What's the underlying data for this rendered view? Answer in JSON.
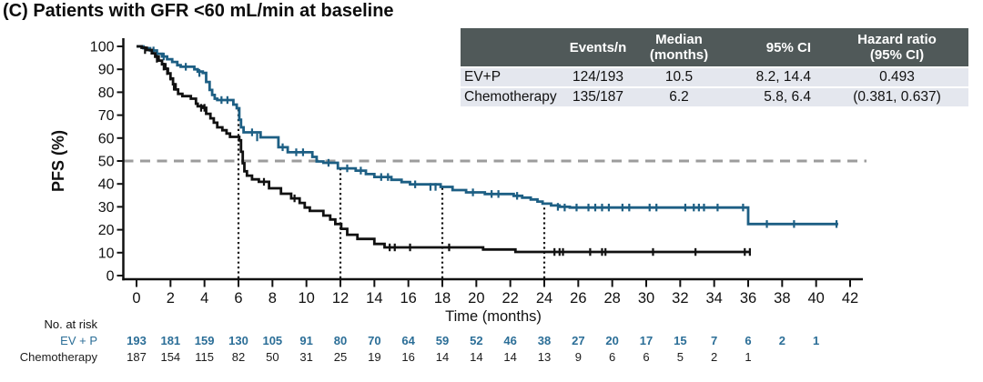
{
  "title": "(C) Patients with GFR <60 mL/min at baseline",
  "inset_table": {
    "columns": {
      "events": "Events/n",
      "median": "Median\n(months)",
      "ci": "95% CI",
      "hr": "Hazard ratio\n(95% CI)"
    },
    "rows": [
      {
        "label": "EV+P",
        "events": "124/193",
        "median": "10.5",
        "ci": "8.2, 14.4",
        "hr": "0.493"
      },
      {
        "label": "Chemotherapy",
        "events": "135/187",
        "median": "6.2",
        "ci": "5.8, 6.4",
        "hr": "(0.381, 0.637)"
      }
    ],
    "header_bg": "#505959",
    "header_text_color": "#ffffff",
    "row_bg": "#e4e7ee"
  },
  "chart_data": {
    "type": "line",
    "subtype": "kaplan-meier-step",
    "xlabel": "Time (months)",
    "ylabel": "PFS (%)",
    "xlim": [
      0,
      42
    ],
    "x_tick_step": 2,
    "x_ticks": [
      0,
      2,
      4,
      6,
      8,
      10,
      12,
      14,
      16,
      18,
      20,
      22,
      24,
      26,
      28,
      30,
      32,
      34,
      36,
      38,
      40,
      42
    ],
    "ylim": [
      0,
      100
    ],
    "y_tick_step": 10,
    "y_ticks": [
      0,
      10,
      20,
      30,
      40,
      50,
      60,
      70,
      80,
      90,
      100
    ],
    "grid": false,
    "reference_line_pct": 50,
    "reference_line_color": "#9c9c9c",
    "dotted_vlines_months": [
      6,
      12,
      18,
      24
    ],
    "series": [
      {
        "name": "EV+P",
        "color": "#1d5f84",
        "median_months": 10.5,
        "end_time": 41.3,
        "steps": [
          [
            0,
            100
          ],
          [
            0.4,
            99.2
          ],
          [
            0.8,
            98.2
          ],
          [
            1.2,
            96.8
          ],
          [
            1.5,
            95.6
          ],
          [
            1.8,
            94.4
          ],
          [
            2.1,
            93.2
          ],
          [
            2.4,
            91.8
          ],
          [
            2.6,
            91.1
          ],
          [
            3.4,
            90.0
          ],
          [
            3.6,
            89.0
          ],
          [
            3.9,
            88.4
          ],
          [
            4.1,
            84.5
          ],
          [
            4.3,
            81.0
          ],
          [
            4.45,
            78.8
          ],
          [
            4.6,
            77.2
          ],
          [
            4.75,
            76.6
          ],
          [
            5.7,
            74.6
          ],
          [
            5.9,
            73.0
          ],
          [
            6.05,
            68.0
          ],
          [
            6.15,
            64.7
          ],
          [
            6.3,
            62.5
          ],
          [
            7.3,
            60.3
          ],
          [
            8.35,
            56.0
          ],
          [
            8.9,
            53.8
          ],
          [
            10.35,
            51.8
          ],
          [
            10.6,
            49.8
          ],
          [
            11.0,
            49.2
          ],
          [
            11.85,
            46.8
          ],
          [
            12.9,
            45.8
          ],
          [
            13.5,
            44.3
          ],
          [
            14.0,
            43.0
          ],
          [
            15.0,
            41.8
          ],
          [
            15.6,
            40.8
          ],
          [
            16.1,
            39.8
          ],
          [
            17.9,
            38.7
          ],
          [
            18.6,
            37.3
          ],
          [
            19.4,
            36.3
          ],
          [
            20.5,
            35.6
          ],
          [
            22.2,
            34.8
          ],
          [
            22.7,
            34.0
          ],
          [
            23.2,
            33.2
          ],
          [
            23.6,
            32.3
          ],
          [
            23.9,
            31.4
          ],
          [
            24.4,
            30.6
          ],
          [
            24.9,
            30.0
          ],
          [
            25.5,
            29.7
          ],
          [
            36.0,
            22.5
          ]
        ],
        "censors": [
          [
            1.0,
            98.2
          ],
          [
            1.6,
            95.6
          ],
          [
            2.9,
            91.1
          ],
          [
            3.7,
            88.4
          ],
          [
            5.0,
            76.6
          ],
          [
            5.35,
            76.6
          ],
          [
            6.8,
            62.5
          ],
          [
            7.1,
            60.3
          ],
          [
            8.6,
            56.0
          ],
          [
            9.4,
            53.8
          ],
          [
            9.8,
            53.8
          ],
          [
            11.3,
            49.2
          ],
          [
            12.4,
            46.8
          ],
          [
            13.2,
            45.8
          ],
          [
            14.4,
            43.0
          ],
          [
            14.8,
            43.0
          ],
          [
            16.4,
            39.8
          ],
          [
            17.3,
            38.7
          ],
          [
            17.6,
            38.7
          ],
          [
            19.8,
            36.3
          ],
          [
            20.9,
            35.6
          ],
          [
            21.3,
            35.6
          ],
          [
            22.4,
            34.8
          ],
          [
            24.8,
            30.0
          ],
          [
            25.2,
            29.7
          ],
          [
            25.9,
            29.7
          ],
          [
            26.6,
            29.7
          ],
          [
            27.0,
            29.7
          ],
          [
            27.4,
            29.7
          ],
          [
            27.8,
            29.7
          ],
          [
            28.6,
            29.7
          ],
          [
            29.0,
            29.7
          ],
          [
            30.2,
            29.7
          ],
          [
            30.6,
            29.7
          ],
          [
            32.3,
            29.7
          ],
          [
            32.8,
            29.7
          ],
          [
            33.1,
            29.7
          ],
          [
            33.4,
            29.7
          ],
          [
            34.2,
            29.7
          ],
          [
            35.7,
            29.7
          ],
          [
            37.1,
            22.5
          ],
          [
            38.7,
            22.5
          ],
          [
            41.2,
            22.5
          ]
        ]
      },
      {
        "name": "Chemotherapy",
        "color": "#111111",
        "median_months": 6.2,
        "end_time": 36.15,
        "steps": [
          [
            0,
            100
          ],
          [
            0.3,
            99.4
          ],
          [
            0.6,
            98.4
          ],
          [
            0.9,
            97.0
          ],
          [
            1.1,
            95.5
          ],
          [
            1.3,
            93.8
          ],
          [
            1.5,
            92.2
          ],
          [
            1.7,
            90.2
          ],
          [
            1.85,
            88.2
          ],
          [
            2.0,
            86.0
          ],
          [
            2.15,
            83.5
          ],
          [
            2.3,
            81.2
          ],
          [
            2.45,
            79.3
          ],
          [
            2.7,
            78.3
          ],
          [
            3.2,
            77.2
          ],
          [
            3.5,
            75.0
          ],
          [
            3.6,
            73.9
          ],
          [
            3.9,
            73.2
          ],
          [
            4.1,
            70.6
          ],
          [
            4.35,
            68.6
          ],
          [
            4.55,
            66.7
          ],
          [
            4.75,
            64.7
          ],
          [
            5.05,
            63.4
          ],
          [
            5.3,
            62.0
          ],
          [
            5.5,
            60.5
          ],
          [
            6.05,
            59.0
          ],
          [
            6.15,
            54.0
          ],
          [
            6.25,
            49.0
          ],
          [
            6.35,
            45.5
          ],
          [
            6.5,
            43.6
          ],
          [
            6.8,
            42.0
          ],
          [
            7.2,
            40.9
          ],
          [
            7.8,
            38.1
          ],
          [
            8.5,
            35.7
          ],
          [
            9.1,
            33.7
          ],
          [
            9.6,
            31.7
          ],
          [
            9.9,
            29.7
          ],
          [
            10.2,
            28.2
          ],
          [
            11.0,
            26.2
          ],
          [
            11.4,
            24.5
          ],
          [
            11.7,
            22.5
          ],
          [
            12.05,
            20.4
          ],
          [
            12.4,
            17.8
          ],
          [
            13.0,
            16.0
          ],
          [
            14.0,
            13.8
          ],
          [
            14.6,
            12.3
          ],
          [
            20.4,
            11.4
          ],
          [
            22.3,
            10.3
          ]
        ],
        "censors": [
          [
            0.5,
            98.4
          ],
          [
            1.2,
            94.6
          ],
          [
            1.6,
            91.2
          ],
          [
            1.8,
            89.2
          ],
          [
            2.0,
            86.8
          ],
          [
            2.2,
            82.4
          ],
          [
            3.8,
            73.2
          ],
          [
            4.0,
            73.2
          ],
          [
            7.5,
            40.9
          ],
          [
            9.3,
            33.7
          ],
          [
            14.9,
            12.3
          ],
          [
            15.2,
            12.3
          ],
          [
            16.1,
            12.3
          ],
          [
            18.4,
            12.3
          ],
          [
            24.6,
            10.3
          ],
          [
            24.9,
            10.3
          ],
          [
            25.1,
            10.3
          ],
          [
            26.7,
            10.3
          ],
          [
            27.4,
            10.3
          ],
          [
            27.6,
            10.3
          ],
          [
            30.4,
            10.3
          ],
          [
            32.9,
            10.3
          ],
          [
            35.8,
            10.3
          ],
          [
            36.1,
            10.3
          ]
        ]
      }
    ]
  },
  "risk_table": {
    "heading": "No. at risk",
    "times": [
      0,
      2,
      4,
      6,
      8,
      10,
      12,
      14,
      16,
      18,
      20,
      22,
      24,
      26,
      28,
      30,
      32,
      34,
      36,
      38,
      40
    ],
    "rows": [
      {
        "label": "EV + P",
        "color": "#2b6e97",
        "bold": true,
        "values": [
          193,
          181,
          159,
          130,
          105,
          91,
          80,
          70,
          64,
          59,
          52,
          46,
          38,
          27,
          20,
          17,
          15,
          7,
          6,
          2,
          1
        ]
      },
      {
        "label": "Chemotherapy",
        "color": "#1c1c1c",
        "bold": false,
        "values": [
          187,
          154,
          115,
          82,
          50,
          31,
          25,
          19,
          16,
          14,
          14,
          14,
          13,
          9,
          6,
          6,
          5,
          2,
          1
        ]
      }
    ]
  }
}
